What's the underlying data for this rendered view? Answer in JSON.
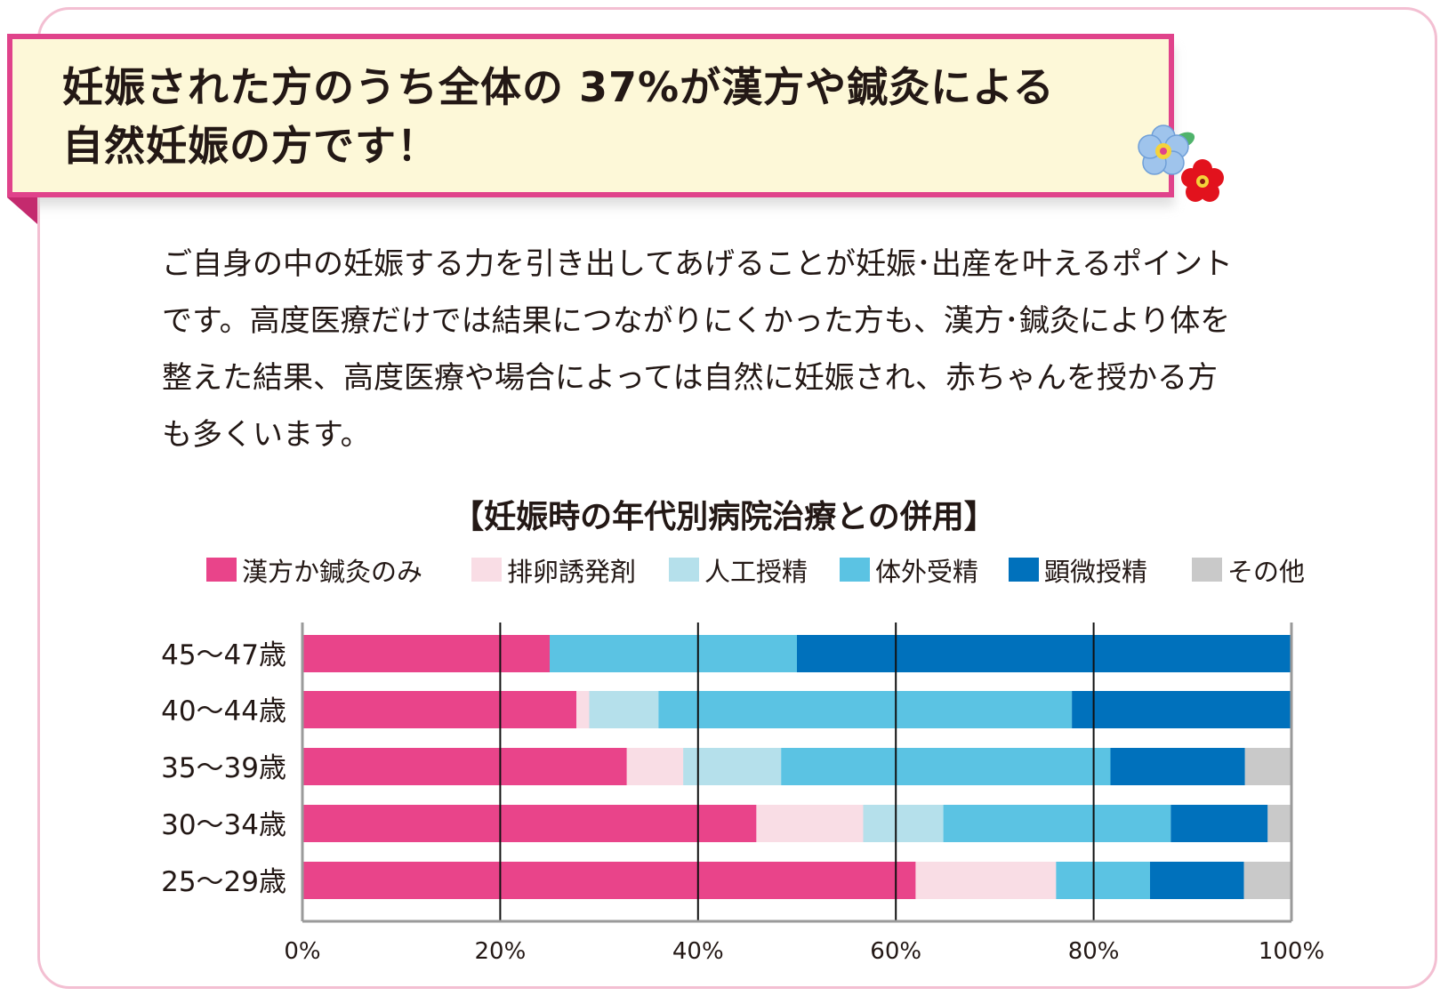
{
  "headline": {
    "line1": "妊娠された方のうち全体の 37%が漢方や鍼灸による",
    "line2": "自然妊娠の方です！"
  },
  "body": {
    "lines": [
      "ご自身の中の妊娠する力を引き出してあげることが妊娠･出産を叶えるポイント",
      "です。高度医療だけでは結果につながりにくかった方も、漢方･鍼灸により体を",
      "整えた結果、高度医療や場合によっては自然に妊娠され、赤ちゃんを授かる方",
      "も多くいます。"
    ]
  },
  "colors": {
    "accent": "#e0438b",
    "title_bg": "#fdf8d8",
    "card_border": "#f3bfd2"
  },
  "chart_data": {
    "type": "bar",
    "orientation": "horizontal-stacked-100",
    "title": "【妊娠時の年代別病院治療との併用】",
    "categories": [
      "45～47歳",
      "40～44歳",
      "35～39歳",
      "30～34歳",
      "25～29歳"
    ],
    "series": [
      {
        "name": "漢方か鍼灸のみ",
        "color": "#e9448a",
        "values": [
          25,
          27.7,
          32.8,
          45.9,
          62
        ]
      },
      {
        "name": "排卵誘発剤",
        "color": "#f9dde5",
        "values": [
          0,
          1.3,
          5.7,
          10.8,
          14.2
        ]
      },
      {
        "name": "人工授精",
        "color": "#b5e0eb",
        "values": [
          0,
          7,
          9.9,
          8.1,
          0
        ]
      },
      {
        "name": "体外受精",
        "color": "#5bc3e3",
        "values": [
          25,
          41.8,
          33.3,
          23,
          9.5
        ]
      },
      {
        "name": "顕微授精",
        "color": "#0071bc",
        "values": [
          50,
          22.2,
          13.6,
          9.8,
          9.5
        ]
      },
      {
        "name": "その他",
        "color": "#c9c9c9",
        "values": [
          0,
          0,
          4.7,
          2.4,
          4.8
        ]
      }
    ],
    "x_ticks": [
      "0%",
      "20%",
      "40%",
      "60%",
      "80%",
      "100%"
    ],
    "xlim": [
      0,
      100
    ],
    "grid": true,
    "legend_position": "top"
  }
}
